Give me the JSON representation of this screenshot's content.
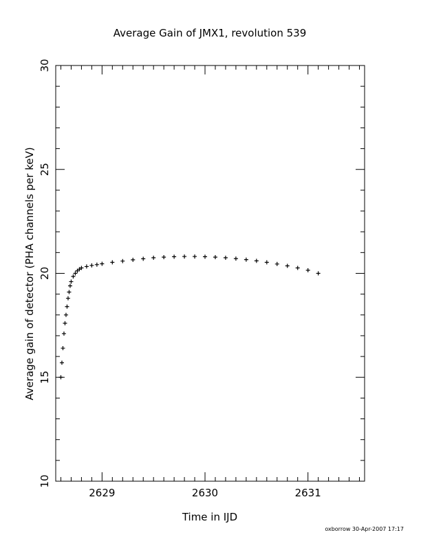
{
  "chart_data": {
    "type": "scatter",
    "title": "Average Gain of JMX1, revolution 539",
    "xlabel": "Time in IJD",
    "ylabel": "Average gain of detector (PHA channels per keV)",
    "xlim": [
      2628.55,
      2631.55
    ],
    "ylim": [
      10,
      30
    ],
    "x_ticks": [
      2629,
      2630,
      2631
    ],
    "y_ticks": [
      10,
      15,
      20,
      25,
      30
    ],
    "x_minor_step": 0.1,
    "y_minor_step": 1,
    "grid": false,
    "legend": "none",
    "marker": "plus",
    "series": [
      {
        "x": [
          2628.6,
          2628.61,
          2628.62,
          2628.63,
          2628.64,
          2628.65,
          2628.66,
          2628.67,
          2628.68,
          2628.69,
          2628.7,
          2628.72,
          2628.74,
          2628.76,
          2628.78,
          2628.8,
          2628.85,
          2628.9,
          2628.95,
          2629.0,
          2629.1,
          2629.2,
          2629.3,
          2629.4,
          2629.5,
          2629.6,
          2629.7,
          2629.8,
          2629.9,
          2630.0,
          2630.1,
          2630.2,
          2630.3,
          2630.4,
          2630.5,
          2630.6,
          2630.7,
          2630.8,
          2630.9,
          2631.0,
          2631.1
        ],
        "y": [
          15.0,
          15.7,
          16.4,
          17.1,
          17.6,
          18.0,
          18.4,
          18.8,
          19.1,
          19.4,
          19.6,
          19.85,
          20.0,
          20.12,
          20.2,
          20.26,
          20.33,
          20.38,
          20.42,
          20.46,
          20.53,
          20.59,
          20.65,
          20.7,
          20.75,
          20.78,
          20.8,
          20.81,
          20.81,
          20.8,
          20.78,
          20.75,
          20.71,
          20.66,
          20.6,
          20.53,
          20.45,
          20.36,
          20.26,
          20.15,
          20.0
        ]
      }
    ]
  },
  "footer": {
    "credit": "oxborrow 30-Apr-2007 17:17"
  }
}
